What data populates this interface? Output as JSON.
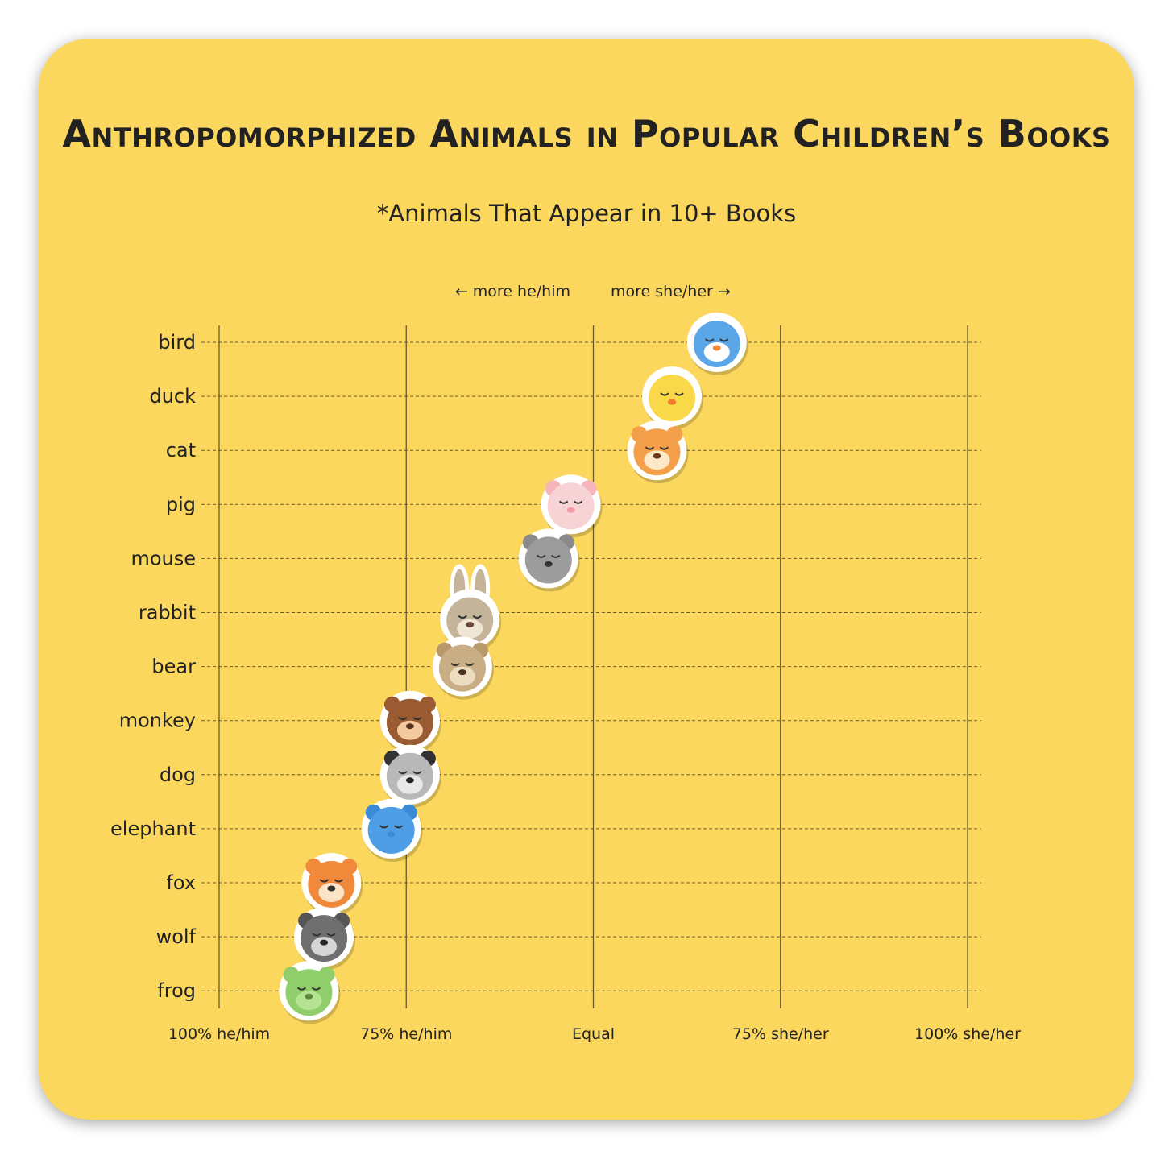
{
  "title": "Anthropomorphized Animals in Popular Children’s Books",
  "subtitle": "*Animals That Appear in 10+ Books",
  "direction_labels": {
    "left": "← more he/him",
    "right": "more she/her →"
  },
  "colors": {
    "background": "#fcd75d",
    "text": "#222222",
    "gridline": "#6b5a2a",
    "sticker_border": "#ffffff"
  },
  "chart_data": {
    "type": "scatter",
    "x_tick_labels": [
      "100% he/him",
      "75% he/him",
      "Equal",
      "75% she/her",
      "100% she/her"
    ],
    "x_tick_values": [
      -1.0,
      -0.5,
      0.0,
      0.5,
      1.0
    ],
    "xlim": [
      -1.0,
      1.0
    ],
    "categories": [
      "bird",
      "duck",
      "cat",
      "pig",
      "mouse",
      "rabbit",
      "bear",
      "monkey",
      "dog",
      "elephant",
      "fox",
      "wolf",
      "frog"
    ],
    "values": [
      0.33,
      0.21,
      0.17,
      -0.06,
      -0.12,
      -0.33,
      -0.35,
      -0.49,
      -0.49,
      -0.54,
      -0.7,
      -0.72,
      -0.76
    ],
    "grid": true,
    "icons": [
      "bird-icon",
      "duck-icon",
      "cat-icon",
      "pig-icon",
      "mouse-icon",
      "rabbit-icon",
      "bear-icon",
      "monkey-icon",
      "dog-icon",
      "elephant-icon",
      "fox-icon",
      "wolf-icon",
      "frog-icon"
    ]
  }
}
